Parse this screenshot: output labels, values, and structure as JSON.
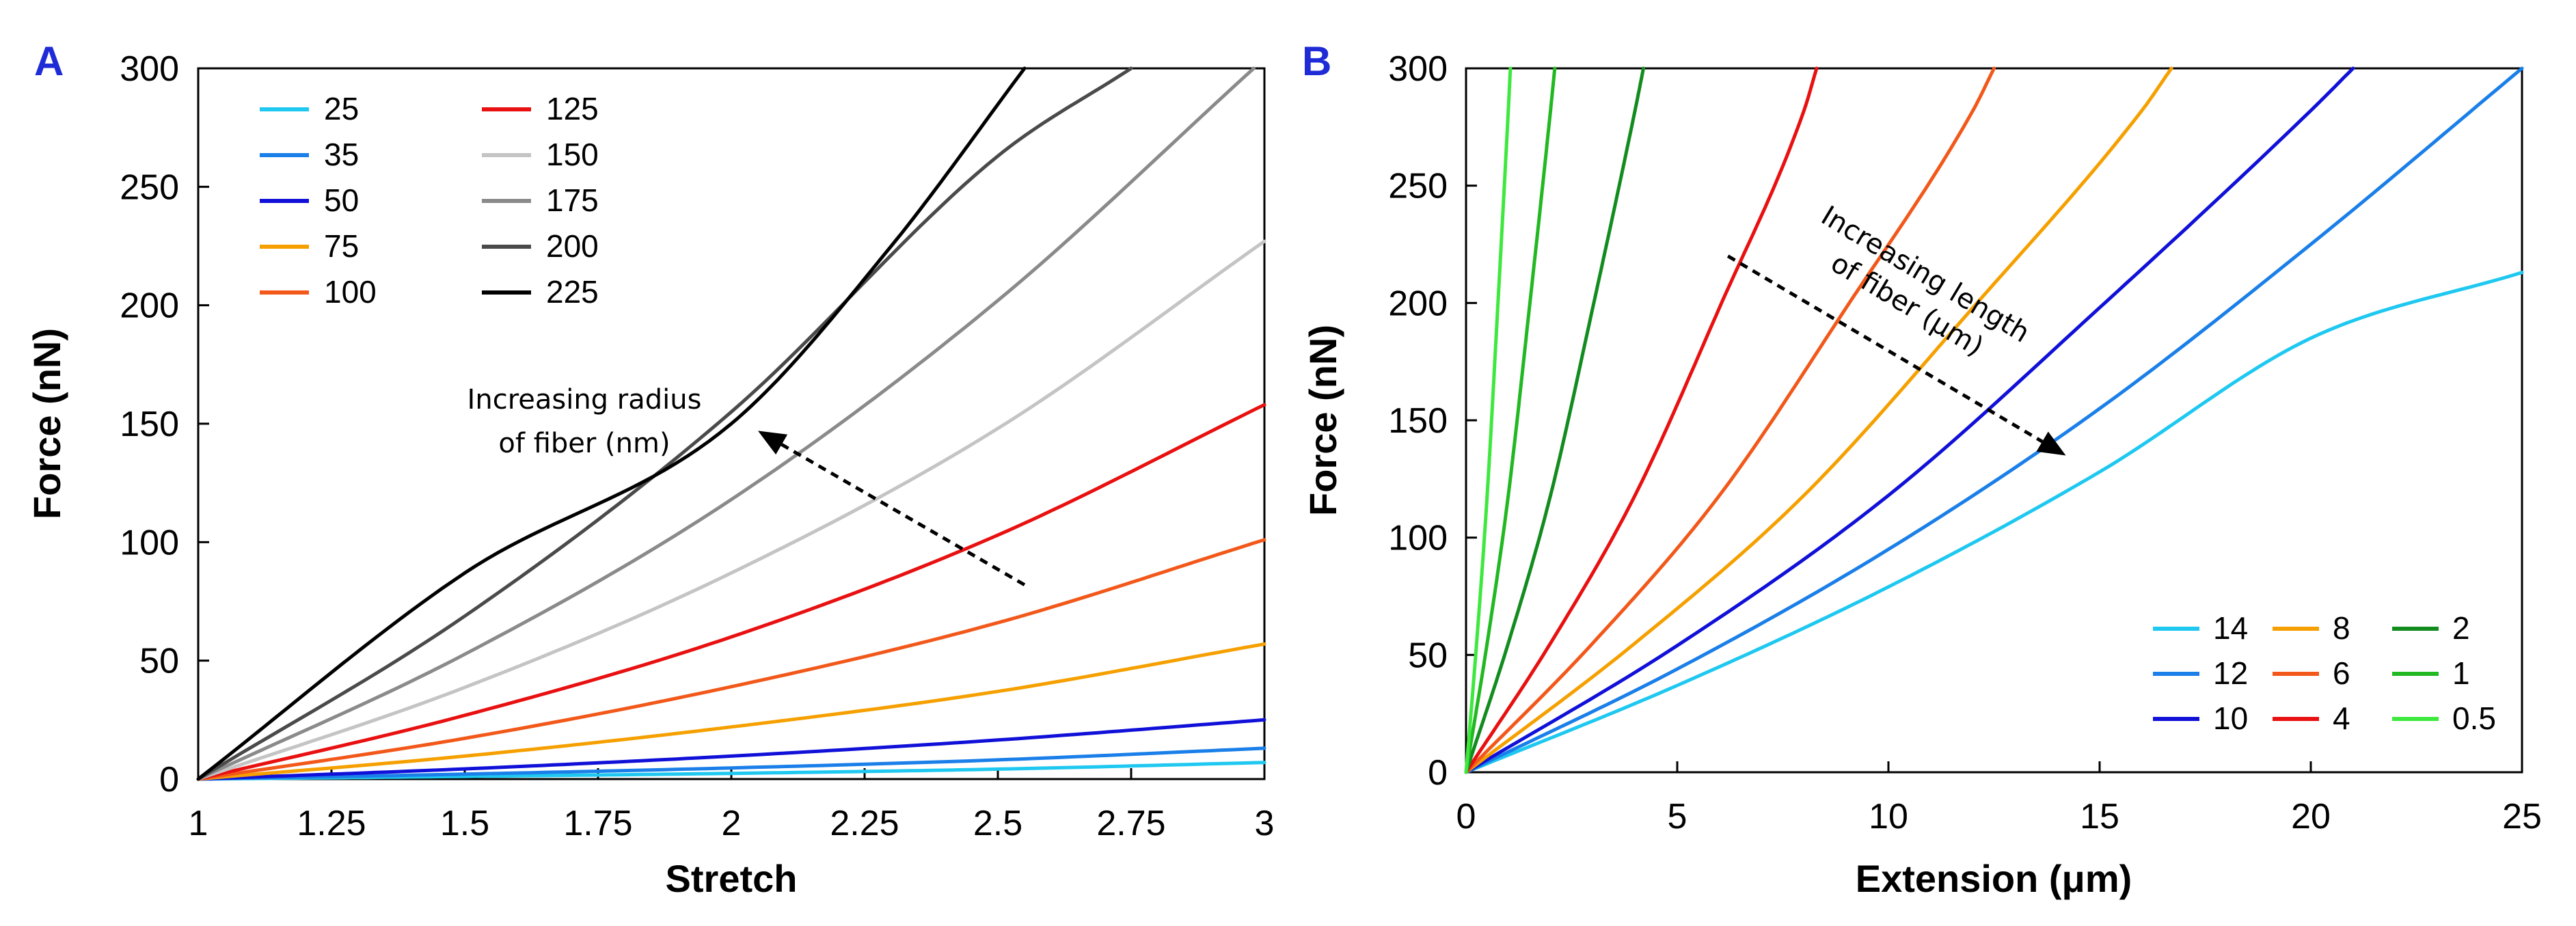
{
  "chart_data": [
    {
      "id": "A",
      "panel_label": "A",
      "type": "line",
      "xlabel": "Stretch",
      "ylabel": "Force (nN)",
      "xlim": [
        1,
        3
      ],
      "ylim": [
        0,
        300
      ],
      "xticks": [
        1,
        1.25,
        1.5,
        1.75,
        2,
        2.25,
        2.5,
        2.75,
        3
      ],
      "xtick_labels": [
        "1",
        "1.25",
        "1.5",
        "1.75",
        "2",
        "2.25",
        "2.5",
        "2.75",
        "3"
      ],
      "yticks": [
        0,
        50,
        100,
        150,
        200,
        250,
        300
      ],
      "ytick_labels": [
        "0",
        "50",
        "100",
        "150",
        "200",
        "250",
        "300"
      ],
      "grid": false,
      "legend_position": "top-left",
      "legend_columns": 2,
      "series": [
        {
          "name": "25",
          "color": "#1ec8f0",
          "x": [
            1,
            1.5,
            2,
            2.5,
            3
          ],
          "y": [
            0,
            1.1,
            2.4,
            4.2,
            7
          ]
        },
        {
          "name": "35",
          "color": "#1a7fe8",
          "x": [
            1,
            1.5,
            2,
            2.5,
            3
          ],
          "y": [
            0,
            2.1,
            4.7,
            8.1,
            13
          ]
        },
        {
          "name": "50",
          "color": "#1010d8",
          "x": [
            1,
            1.5,
            2,
            2.5,
            3
          ],
          "y": [
            0,
            4.3,
            9.7,
            16.5,
            25
          ]
        },
        {
          "name": "75",
          "color": "#f5a000",
          "x": [
            1,
            1.5,
            2,
            2.5,
            3
          ],
          "y": [
            0,
            9.7,
            22,
            37,
            57
          ]
        },
        {
          "name": "100",
          "color": "#f2581a",
          "x": [
            1,
            1.5,
            2,
            2.5,
            3
          ],
          "y": [
            0,
            17.2,
            39,
            66,
            101
          ]
        },
        {
          "name": "125",
          "color": "#e81010",
          "x": [
            1,
            1.5,
            2,
            2.5,
            3
          ],
          "y": [
            0,
            26.9,
            60,
            103,
            158
          ]
        },
        {
          "name": "150",
          "color": "#c4c4c4",
          "x": [
            1,
            1.5,
            2,
            2.5,
            3
          ],
          "y": [
            0,
            38.7,
            87,
            148,
            227
          ]
        },
        {
          "name": "175",
          "color": "#8a8a8a",
          "x": [
            1,
            1.5,
            2,
            2.5,
            2.98
          ],
          "y": [
            0,
            52.7,
            118,
            202,
            300
          ]
        },
        {
          "name": "200",
          "color": "#4a4a4a",
          "x": [
            1,
            1.5,
            2,
            2.5,
            2.75
          ],
          "y": [
            0,
            68.8,
            155,
            263,
            300
          ]
        },
        {
          "name": "225",
          "color": "#000000",
          "x": [
            1,
            1.5,
            2,
            2.3,
            2.55
          ],
          "y": [
            0,
            87,
            150,
            225,
            300
          ]
        }
      ],
      "annotation": {
        "lines": [
          "Increasing radius",
          "of fiber (nm)"
        ],
        "arrow_from": [
          2.55,
          82
        ],
        "arrow_to": [
          2.05,
          147
        ]
      }
    },
    {
      "id": "B",
      "panel_label": "B",
      "type": "line",
      "xlabel": "Extension (μm)",
      "ylabel": "Force (nN)",
      "xlim": [
        0,
        25
      ],
      "ylim": [
        0,
        300
      ],
      "xticks": [
        0,
        5,
        10,
        15,
        20,
        25
      ],
      "xtick_labels": [
        "0",
        "5",
        "10",
        "15",
        "20",
        "25"
      ],
      "yticks": [
        0,
        50,
        100,
        150,
        200,
        250,
        300
      ],
      "ytick_labels": [
        "0",
        "50",
        "100",
        "150",
        "200",
        "250",
        "300"
      ],
      "grid": false,
      "legend_position": "bottom-right",
      "legend_columns": 3,
      "series": [
        {
          "name": "14",
          "color": "#1ec8f0",
          "x": [
            0,
            5,
            10,
            15,
            20,
            25
          ],
          "y": [
            0,
            37,
            79,
            128,
            185,
            213
          ]
        },
        {
          "name": "12",
          "color": "#1a7fe8",
          "x": [
            0,
            5,
            10,
            15,
            20,
            25
          ],
          "y": [
            0,
            44,
            95,
            155,
            225,
            300
          ]
        },
        {
          "name": "10",
          "color": "#1010d8",
          "x": [
            0,
            5,
            10,
            15,
            20,
            21
          ],
          "y": [
            0,
            54,
            118,
            198,
            282,
            300
          ]
        },
        {
          "name": "8",
          "color": "#f5a000",
          "x": [
            0,
            4,
            8,
            12,
            16,
            16.7
          ],
          "y": [
            0,
            55,
            118,
            198,
            282,
            300
          ]
        },
        {
          "name": "6",
          "color": "#f2581a",
          "x": [
            0,
            3,
            6,
            9,
            12,
            12.5
          ],
          "y": [
            0,
            55,
            118,
            198,
            282,
            300
          ]
        },
        {
          "name": "4",
          "color": "#e81010",
          "x": [
            0,
            2,
            4,
            6,
            8,
            8.3
          ],
          "y": [
            0,
            55,
            118,
            198,
            282,
            300
          ]
        },
        {
          "name": "2",
          "color": "#128c1e",
          "x": [
            0,
            1,
            2,
            3,
            4,
            4.2
          ],
          "y": [
            0,
            55,
            118,
            198,
            282,
            300
          ]
        },
        {
          "name": "1",
          "color": "#22b822",
          "x": [
            0,
            0.5,
            1,
            1.5,
            2,
            2.1
          ],
          "y": [
            0,
            55,
            118,
            198,
            282,
            300
          ]
        },
        {
          "name": "0.5",
          "color": "#3ee83e",
          "x": [
            0,
            0.25,
            0.5,
            0.75,
            1,
            1.05
          ],
          "y": [
            0,
            55,
            118,
            198,
            282,
            300
          ]
        }
      ],
      "annotation": {
        "lines": [
          "Increasing length",
          "of fiber (μm)"
        ],
        "arrow_from": [
          6.2,
          220
        ],
        "arrow_to": [
          14.2,
          135
        ]
      }
    }
  ]
}
